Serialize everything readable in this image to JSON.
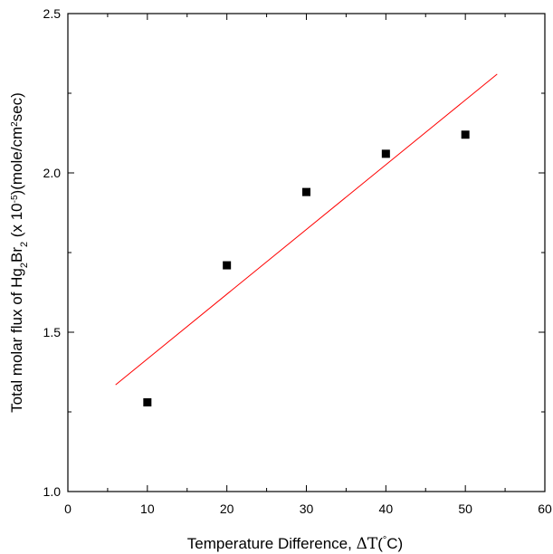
{
  "chart_data": {
    "type": "scatter",
    "title": "",
    "xlabel": {
      "prefix": "Temperature Difference, ",
      "delta": "Δ",
      "T": "T",
      "open": "(",
      "degree": "°",
      "unit": "C",
      "close": ")"
    },
    "ylabel": {
      "part1": "Total molar flux of Hg",
      "sub1": "2",
      "part2": "Br",
      "sub2": "2",
      "part3": " (x 10",
      "sup1": "-5",
      "part4": ")(mole/cm",
      "sup2": "2",
      "part5": "sec)"
    },
    "xlim": [
      0,
      60
    ],
    "ylim": [
      1.0,
      2.5
    ],
    "xticks": [
      0,
      10,
      20,
      30,
      40,
      50,
      60
    ],
    "yticks": [
      1.0,
      1.5,
      2.0,
      2.5
    ],
    "xtick_labels": [
      "0",
      "10",
      "20",
      "30",
      "40",
      "50",
      "60"
    ],
    "ytick_labels": [
      "1.0",
      "1.5",
      "2.0",
      "2.5"
    ],
    "grid": false,
    "legend": "none",
    "series": [
      {
        "kind": "markers",
        "marker": "square",
        "color": "#000000",
        "x": [
          10,
          20,
          30,
          40,
          50
        ],
        "y": [
          1.28,
          1.71,
          1.94,
          2.06,
          2.12
        ]
      },
      {
        "kind": "line",
        "color": "#ff0000",
        "x": [
          6,
          54
        ],
        "y": [
          1.335,
          2.31
        ]
      }
    ]
  }
}
